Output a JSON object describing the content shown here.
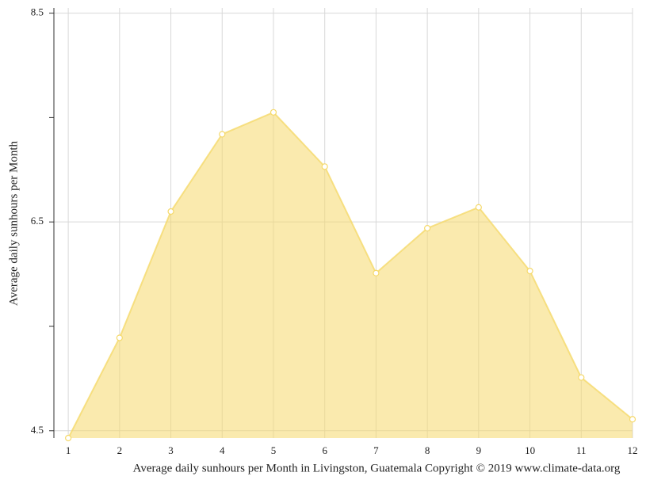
{
  "chart_data": {
    "type": "area",
    "title": "Average daily sunhours per Month in Livingston, Guatemala Copyright © 2019 www.climate-data.org",
    "y_label": "Average daily sunhours per Month",
    "x": [
      1,
      2,
      3,
      4,
      5,
      6,
      7,
      8,
      9,
      10,
      11,
      12
    ],
    "series": [
      {
        "name": "Average daily sunhours",
        "color": "#f5d96b",
        "values": [
          4.43,
          5.39,
          6.6,
          7.34,
          7.55,
          7.03,
          6.01,
          6.44,
          6.64,
          6.03,
          5.01,
          4.61
        ]
      }
    ],
    "xlim": [
      0.72,
      12
    ],
    "xticks": [
      1,
      2,
      3,
      4,
      5,
      6,
      7,
      8,
      9,
      10,
      11,
      12
    ],
    "ylim": [
      4.43,
      8.55
    ],
    "yticks": [
      4.5,
      6.5,
      8.5
    ],
    "minor_yticks": [
      5.5,
      7.5
    ],
    "grid": true
  }
}
